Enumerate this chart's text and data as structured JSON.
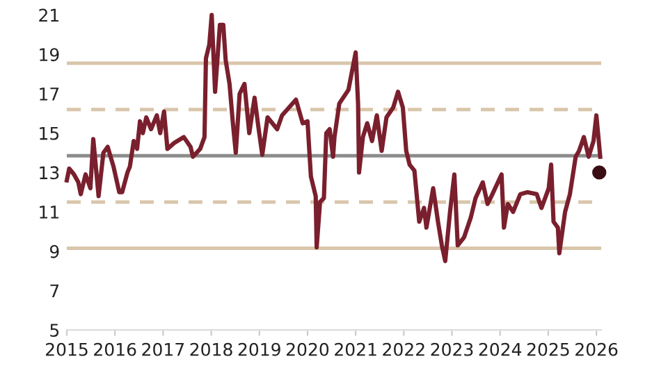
{
  "chart_data": {
    "type": "line",
    "xlim": [
      2015,
      2026.1
    ],
    "ylim": [
      5,
      21
    ],
    "xticks": [
      2015,
      2016,
      2017,
      2018,
      2019,
      2020,
      2021,
      2022,
      2023,
      2024,
      2025,
      2026
    ],
    "yticks": [
      5,
      7,
      9,
      11,
      13,
      15,
      17,
      19,
      21
    ],
    "grid": false,
    "legend": false,
    "marker": "none",
    "line_style": "solid",
    "series": [
      {
        "color": "#7a1f2d",
        "x": [
          2015.0,
          2015.05,
          2015.15,
          2015.24,
          2015.29,
          2015.39,
          2015.49,
          2015.55,
          2015.66,
          2015.76,
          2015.85,
          2015.97,
          2016.09,
          2016.15,
          2016.26,
          2016.31,
          2016.39,
          2016.46,
          2016.52,
          2016.58,
          2016.65,
          2016.75,
          2016.87,
          2016.94,
          2017.02,
          2017.09,
          2017.23,
          2017.43,
          2017.57,
          2017.62,
          2017.77,
          2017.86,
          2017.89,
          2017.96,
          2018.01,
          2018.08,
          2018.18,
          2018.25,
          2018.3,
          2018.38,
          2018.45,
          2018.51,
          2018.59,
          2018.69,
          2018.79,
          2018.9,
          2018.98,
          2019.06,
          2019.17,
          2019.37,
          2019.47,
          2019.76,
          2019.9,
          2020.0,
          2020.07,
          2020.17,
          2020.19,
          2020.26,
          2020.34,
          2020.39,
          2020.46,
          2020.53,
          2020.56,
          2020.66,
          2020.85,
          2021.0,
          2021.05,
          2021.07,
          2021.15,
          2021.24,
          2021.34,
          2021.44,
          2021.54,
          2021.64,
          2021.78,
          2021.88,
          2021.98,
          2022.05,
          2022.12,
          2022.22,
          2022.32,
          2022.42,
          2022.47,
          2022.61,
          2022.71,
          2022.79,
          2022.86,
          2022.96,
          2023.05,
          2023.12,
          2023.25,
          2023.39,
          2023.49,
          2023.64,
          2023.74,
          2023.84,
          2024.03,
          2024.08,
          2024.16,
          2024.27,
          2024.42,
          2024.57,
          2024.76,
          2024.86,
          2025.01,
          2025.06,
          2025.11,
          2025.2,
          2025.23,
          2025.35,
          2025.45,
          2025.57,
          2025.64,
          2025.74,
          2025.84,
          2025.94,
          2026.0,
          2026.08
        ],
        "values": [
          12.6,
          13.2,
          12.9,
          12.5,
          11.9,
          12.9,
          12.2,
          14.7,
          11.8,
          14.0,
          14.3,
          13.3,
          12.0,
          12.0,
          13.0,
          13.3,
          14.6,
          14.2,
          15.6,
          15.0,
          15.8,
          15.2,
          15.9,
          15.0,
          16.1,
          14.2,
          14.5,
          14.8,
          14.3,
          13.8,
          14.2,
          14.8,
          18.8,
          19.5,
          21.0,
          17.1,
          20.5,
          20.5,
          18.7,
          17.5,
          15.5,
          14.0,
          17.0,
          17.5,
          15.0,
          16.8,
          15.3,
          13.9,
          15.8,
          15.2,
          15.9,
          16.7,
          15.5,
          15.6,
          12.8,
          11.8,
          9.2,
          11.5,
          11.7,
          15.0,
          15.2,
          13.8,
          14.8,
          16.5,
          17.2,
          19.1,
          16.5,
          13.0,
          14.8,
          15.5,
          14.6,
          15.9,
          14.1,
          15.8,
          16.3,
          17.1,
          16.3,
          14.1,
          13.4,
          13.1,
          10.5,
          11.2,
          10.2,
          12.2,
          10.5,
          9.3,
          8.5,
          11.0,
          12.9,
          9.3,
          9.7,
          10.7,
          11.7,
          12.5,
          11.4,
          11.9,
          12.9,
          10.2,
          11.4,
          11.0,
          11.9,
          12.0,
          11.9,
          11.2,
          12.2,
          13.4,
          10.5,
          10.2,
          8.9,
          11.0,
          11.9,
          13.8,
          14.1,
          14.8,
          13.8,
          14.6,
          15.9,
          13.8
        ]
      },
      {
        "type": "scatter",
        "color": "#3a0d14",
        "marker": "circle",
        "x": [
          2026.06
        ],
        "values": [
          13.0
        ]
      }
    ],
    "ref_lines": [
      {
        "axis": "y",
        "value": 18.55,
        "color": "#d9c6ab",
        "line_style": "solid"
      },
      {
        "axis": "y",
        "value": 16.2,
        "color": "#d9c6ab",
        "line_style": "dashed"
      },
      {
        "axis": "y",
        "value": 13.85,
        "color": "#8c8c8c",
        "line_style": "solid"
      },
      {
        "axis": "y",
        "value": 11.5,
        "color": "#d9c6ab",
        "line_style": "dashed"
      },
      {
        "axis": "y",
        "value": 9.15,
        "color": "#d9c6ab",
        "line_style": "solid"
      }
    ]
  }
}
